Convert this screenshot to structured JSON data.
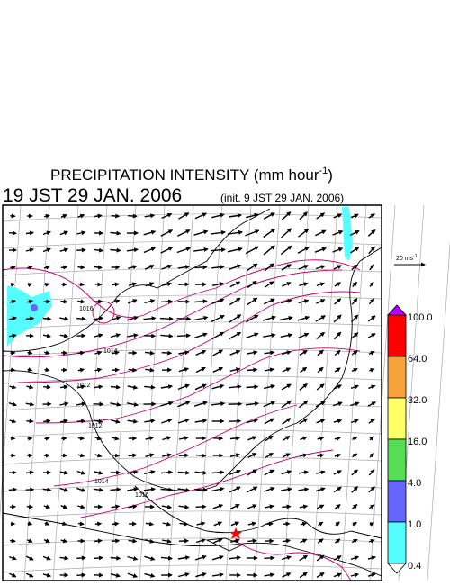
{
  "header": {
    "title": "PRECIPITATION INTENSITY (mm hour",
    "title_sup": "-1",
    "title_end": ")",
    "valid_time": "19 JST 29 JAN. 2006",
    "init_time": "(init. 9 JST 29 JAN. 2006)"
  },
  "scale": {
    "label": "20 ms",
    "label_sup": "-1"
  },
  "colorbar": {
    "levels": [
      {
        "label": "100.0",
        "color": "#ff0000"
      },
      {
        "label": "64.0",
        "color": "#f7a23a"
      },
      {
        "label": "32.0",
        "color": "#ffff66"
      },
      {
        "label": "16.0",
        "color": "#55dd55"
      },
      {
        "label": "4.0",
        "color": "#6666ff"
      },
      {
        "label": "1.0",
        "color": "#55ffff"
      },
      {
        "label": "0.4",
        "color": "#ffffff"
      }
    ],
    "over_color": "#b000ff"
  },
  "contours": {
    "labels": [
      "1016",
      "1014",
      "1012",
      "1012",
      "1014",
      "1016"
    ]
  }
}
